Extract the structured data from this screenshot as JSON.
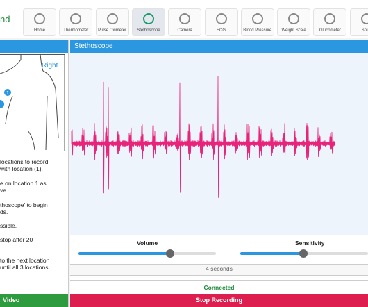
{
  "header": {
    "logo": "nd",
    "nav": [
      "Home",
      "Thermometer",
      "Pulse Oximeter",
      "Stethoscope",
      "Camera",
      "ECG",
      "Blood Pressure",
      "Weight Scale",
      "Glucometer",
      "Spiro"
    ]
  },
  "left_panel": {
    "diagram": {
      "side_label": "Right",
      "marker": "1"
    },
    "instructions": [
      "locations to record",
      "with location (1).",
      "e on location 1 as",
      "ve.",
      "thoscope' to begin",
      "ds.",
      "ssible.",
      "stop after 20",
      "to the next location",
      "until all 3 locations"
    ],
    "button": "Video"
  },
  "main_panel": {
    "title": "Stethoscope",
    "controls": {
      "volume": "Volume",
      "sensitivity": "Sensitivity"
    },
    "timer": "4 seconds",
    "status": "Connected",
    "button": "Stop Recording"
  }
}
